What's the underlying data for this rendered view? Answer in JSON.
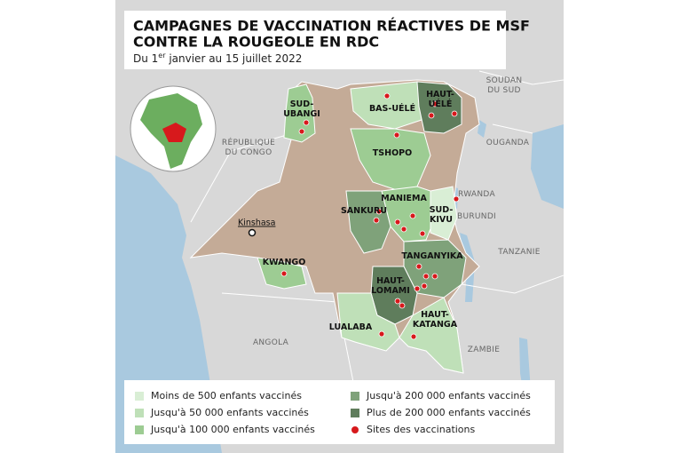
{
  "header": {
    "title_lines": [
      "CAMPAGNES DE VACCINATION RÉACTIVES DE MSF",
      "CONTRE LA ROUGEOLE EN RDC"
    ],
    "subtitle": {
      "before": "Du 1",
      "sup": "er",
      "after": " janvier au 15 juillet 2022"
    }
  },
  "countries": [
    {
      "label": [
        "SOUDAN",
        "DU SUD"
      ]
    },
    {
      "label": [
        "OUGANDA"
      ]
    },
    {
      "label": [
        "RWANDA"
      ]
    },
    {
      "label": [
        "BURUNDI"
      ]
    },
    {
      "label": [
        "TANZANIE"
      ]
    },
    {
      "label": [
        "ZAMBIE"
      ]
    },
    {
      "label": [
        "ANGOLA"
      ]
    },
    {
      "label": [
        "RÉPUBLIQUE",
        "DU CONGO"
      ]
    }
  ],
  "city": "Kinshasa",
  "provinces": [
    {
      "label": [
        "SUD-",
        "UBANGI"
      ]
    },
    {
      "label": [
        "BAS-UÉLÉ"
      ]
    },
    {
      "label": [
        "HAUT-",
        "UÉLÉ"
      ]
    },
    {
      "label": [
        "TSHOPO"
      ]
    },
    {
      "label": [
        "MANIEMA"
      ]
    },
    {
      "label": [
        "SANKURU"
      ]
    },
    {
      "label": [
        "SUD-",
        "KIVU"
      ]
    },
    {
      "label": [
        "KWANGO"
      ]
    },
    {
      "label": [
        "TANGANYIKA"
      ]
    },
    {
      "label": [
        "HAUT-",
        "LOMAMI"
      ]
    },
    {
      "label": [
        "LUALABA"
      ]
    },
    {
      "label": [
        "HAUT-",
        "KATANGA"
      ]
    }
  ],
  "legend": [
    {
      "label": "Moins de 500 enfants vaccinés",
      "color": "#d9eed5"
    },
    {
      "label": "Jusqu'à 50 000 enfants vaccinés",
      "color": "#bfe0b8"
    },
    {
      "label": "Jusqu'à 100 000 enfants vaccinés",
      "color": "#9dcc93"
    },
    {
      "label": "Jusqu'à 200 000 enfants vaccinés",
      "color": "#7fa27a"
    },
    {
      "label": "Plus de 200 000 enfants vaccinés",
      "color": "#5f7d5c"
    },
    {
      "label": "Sites des vaccinations",
      "color": "#d7191c"
    }
  ]
}
